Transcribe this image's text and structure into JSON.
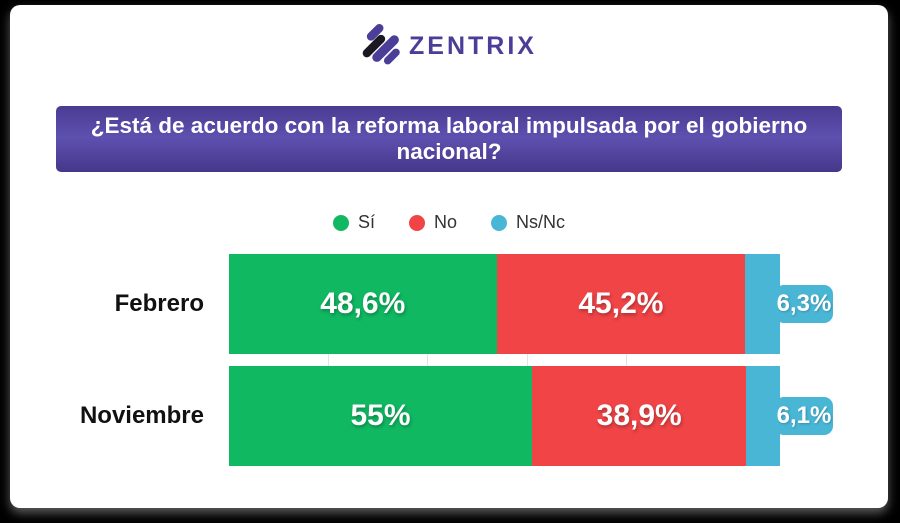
{
  "brand": {
    "name": "ZENTRIX",
    "text_color": "#4b3e99",
    "icon": "zentrix-diagonal-stripes-logo",
    "icon_colors": {
      "purple": "#4b3e99",
      "black": "#1b1723"
    }
  },
  "question_banner": {
    "text": "¿Está de acuerdo con la reforma laboral impulsada por el gobierno nacional?",
    "bg_top": "#4a3b92",
    "bg_mid": "#5e50af",
    "bg_bottom": "#453789",
    "text_color": "#ffffff"
  },
  "legend": {
    "items": [
      {
        "label": "Sí",
        "color": "#10b862"
      },
      {
        "label": "No",
        "color": "#f04446"
      },
      {
        "label": "Ns/Nc",
        "color": "#49b6d6"
      }
    ]
  },
  "chart_data": {
    "type": "bar",
    "orientation": "horizontal-stacked",
    "title": "",
    "xlabel": "",
    "ylabel": "",
    "categories": [
      "Febrero",
      "Noviembre"
    ],
    "series": [
      {
        "name": "Sí",
        "color": "#10b862",
        "values": [
          48.6,
          55.0
        ]
      },
      {
        "name": "No",
        "color": "#f04446",
        "values": [
          45.2,
          38.9
        ]
      },
      {
        "name": "Ns/Nc",
        "color": "#49b6d6",
        "values": [
          6.3,
          6.1
        ]
      }
    ],
    "value_labels": [
      [
        "48,6%",
        "45,2%",
        "6,3%"
      ],
      [
        "55%",
        "38,9%",
        "6,1%"
      ]
    ],
    "last_segment_label_style": "external-badge",
    "legend_position": "top-center",
    "grid": "faint-vertical-ticks-in-row-gap",
    "gridline_positions_pct": [
      18,
      36,
      54,
      72
    ]
  }
}
